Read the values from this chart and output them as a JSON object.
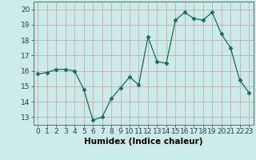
{
  "x": [
    0,
    1,
    2,
    3,
    4,
    5,
    6,
    7,
    8,
    9,
    10,
    11,
    12,
    13,
    14,
    15,
    16,
    17,
    18,
    19,
    20,
    21,
    22,
    23
  ],
  "y": [
    15.8,
    15.9,
    16.1,
    16.1,
    16.0,
    14.8,
    12.8,
    13.0,
    14.2,
    14.9,
    15.6,
    15.1,
    18.2,
    16.6,
    16.5,
    19.3,
    19.8,
    19.4,
    19.3,
    19.8,
    18.4,
    17.5,
    15.4,
    14.6
  ],
  "line_color": "#1a6b5a",
  "marker": "D",
  "marker_size": 2.5,
  "bg_color": "#cceae7",
  "grid_color": "#c0a0a0",
  "xlabel": "Humidex (Indice chaleur)",
  "xlim": [
    -0.5,
    23.5
  ],
  "ylim": [
    12.5,
    20.5
  ],
  "yticks": [
    13,
    14,
    15,
    16,
    17,
    18,
    19,
    20
  ],
  "xtick_labels": [
    "0",
    "1",
    "2",
    "3",
    "4",
    "5",
    "6",
    "7",
    "8",
    "9",
    "10",
    "11",
    "12",
    "13",
    "14",
    "15",
    "16",
    "17",
    "18",
    "19",
    "20",
    "21",
    "22",
    "23"
  ],
  "xlabel_fontsize": 7.5,
  "tick_fontsize": 6.5
}
